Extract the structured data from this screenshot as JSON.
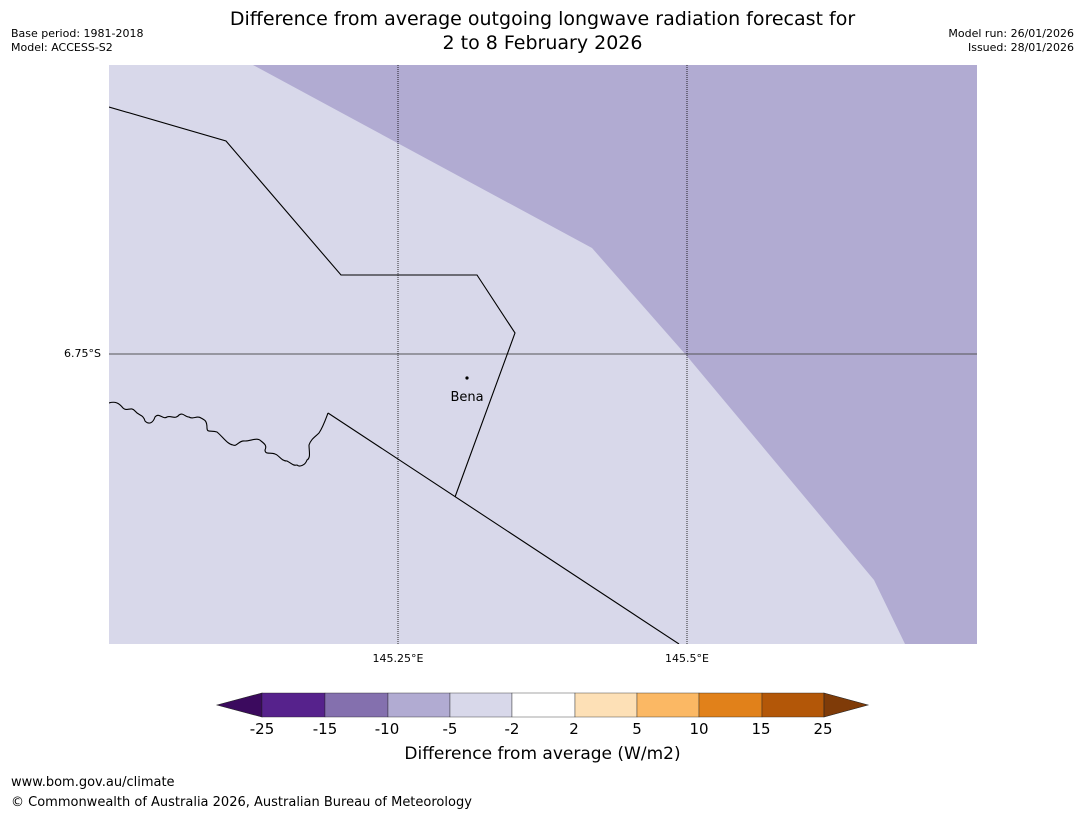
{
  "title": {
    "line1": "Difference from average outgoing longwave radiation forecast for",
    "line2": "2 to 8 February 2026"
  },
  "meta": {
    "base_period": "Base period: 1981-2018",
    "model": "Model: ACCESS-S2",
    "model_run": "Model run: 26/01/2026",
    "issued": "Issued: 28/01/2026"
  },
  "map": {
    "lat_labels": [
      "6.75°S"
    ],
    "lon_labels": [
      "145.25°E",
      "145.5°E"
    ],
    "place": "Bena",
    "colors": {
      "band_-5_-2": "#d8d8ea",
      "band_-10_-5": "#b1abd2",
      "graticule": "#000000",
      "border": "#000000"
    }
  },
  "colorbar": {
    "ticks": [
      "-25",
      "-15",
      "-10",
      "-5",
      "-2",
      "2",
      "5",
      "10",
      "15",
      "25"
    ],
    "colors": [
      "#3b0a5e",
      "#56228c",
      "#8470ae",
      "#b1abd2",
      "#d8d8ea",
      "#ffffff",
      "#fde0b6",
      "#fbb864",
      "#e1811a",
      "#b35708",
      "#7f3b08"
    ],
    "label": "Difference from average (W/m2)"
  },
  "footer": {
    "url": "www.bom.gov.au/climate",
    "copyright": "© Commonwealth of Australia 2026, Australian Bureau of Meteorology"
  }
}
